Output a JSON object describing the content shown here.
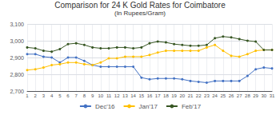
{
  "chart_data": {
    "type": "line",
    "title": "Comparison for 24 K Gold Rates for Coimbatore",
    "subtitle": "(In Rupees/Gram)",
    "x": [
      1,
      2,
      3,
      4,
      5,
      6,
      7,
      8,
      9,
      10,
      11,
      12,
      13,
      14,
      15,
      16,
      17,
      18,
      19,
      20,
      21,
      22,
      23,
      24,
      25,
      26,
      27,
      28,
      29,
      30,
      31
    ],
    "series": [
      {
        "name": "Dec'16",
        "color": "#4472c4",
        "values": [
          2920,
          2920,
          2905,
          2900,
          2870,
          2900,
          2900,
          2880,
          2855,
          2845,
          2845,
          2845,
          2845,
          2845,
          2780,
          2770,
          2775,
          2775,
          2775,
          2770,
          2760,
          2755,
          2750,
          2760,
          2760,
          2760,
          2760,
          2790,
          2830,
          2840,
          2835
        ]
      },
      {
        "name": "Jan'17",
        "color": "#ffc000",
        "values": [
          2825,
          2830,
          2840,
          2855,
          2860,
          2870,
          2870,
          2860,
          2855,
          2870,
          2895,
          2895,
          2905,
          2905,
          2905,
          2915,
          2930,
          2940,
          2940,
          2940,
          2940,
          2940,
          2960,
          2975,
          2940,
          2910,
          2905,
          2920,
          2940,
          2945,
          2945
        ]
      },
      {
        "name": "Feb'17",
        "color": "#375623",
        "values": [
          2960,
          2955,
          2940,
          2935,
          2950,
          2980,
          2985,
          2975,
          2960,
          2955,
          2955,
          2960,
          2960,
          2955,
          2960,
          2985,
          2995,
          2990,
          2980,
          2975,
          2970,
          2970,
          2975,
          3015,
          3025,
          3020,
          3010,
          3000,
          2995,
          2945,
          2945
        ]
      }
    ],
    "xlim": [
      1,
      31
    ],
    "xticks": [
      1,
      2,
      3,
      4,
      5,
      6,
      7,
      8,
      9,
      10,
      11,
      12,
      13,
      14,
      15,
      16,
      17,
      18,
      19,
      20,
      21,
      22,
      23,
      24,
      25,
      26,
      27,
      28,
      29,
      30,
      31
    ],
    "ylim": [
      2700,
      3100
    ],
    "yticks": [
      {
        "value": 2700,
        "label": "2,700"
      },
      {
        "value": 2800,
        "label": "2,800"
      },
      {
        "value": 2900,
        "label": "2,900"
      },
      {
        "value": 3000,
        "label": "3,000"
      },
      {
        "value": 3100,
        "label": "3,100"
      }
    ],
    "grid": true,
    "legend": "bottom",
    "marker": "circle"
  }
}
